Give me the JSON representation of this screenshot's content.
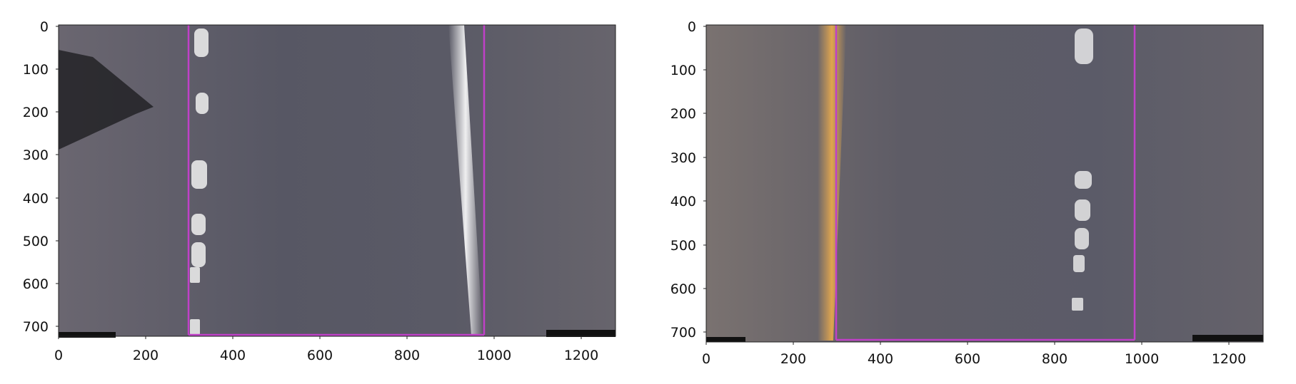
{
  "figure": {
    "panels": [
      {
        "id": "left",
        "x_ticks": [
          "0",
          "200",
          "400",
          "600",
          "800",
          "1000",
          "1200"
        ],
        "y_ticks": [
          "0",
          "100",
          "200",
          "300",
          "400",
          "500",
          "600",
          "700"
        ],
        "overlay_color": "#c040c8",
        "lane_color_left": "#f0f0f0",
        "lane_color_right": "#f3f3f3"
      },
      {
        "id": "right",
        "x_ticks": [
          "0",
          "200",
          "400",
          "600",
          "800",
          "1000",
          "1200"
        ],
        "y_ticks": [
          "0",
          "100",
          "200",
          "300",
          "400",
          "500",
          "600",
          "700"
        ],
        "overlay_color": "#c040c8",
        "lane_color_left": "#e8b258",
        "lane_color_right": "#f3f3f3"
      }
    ]
  }
}
